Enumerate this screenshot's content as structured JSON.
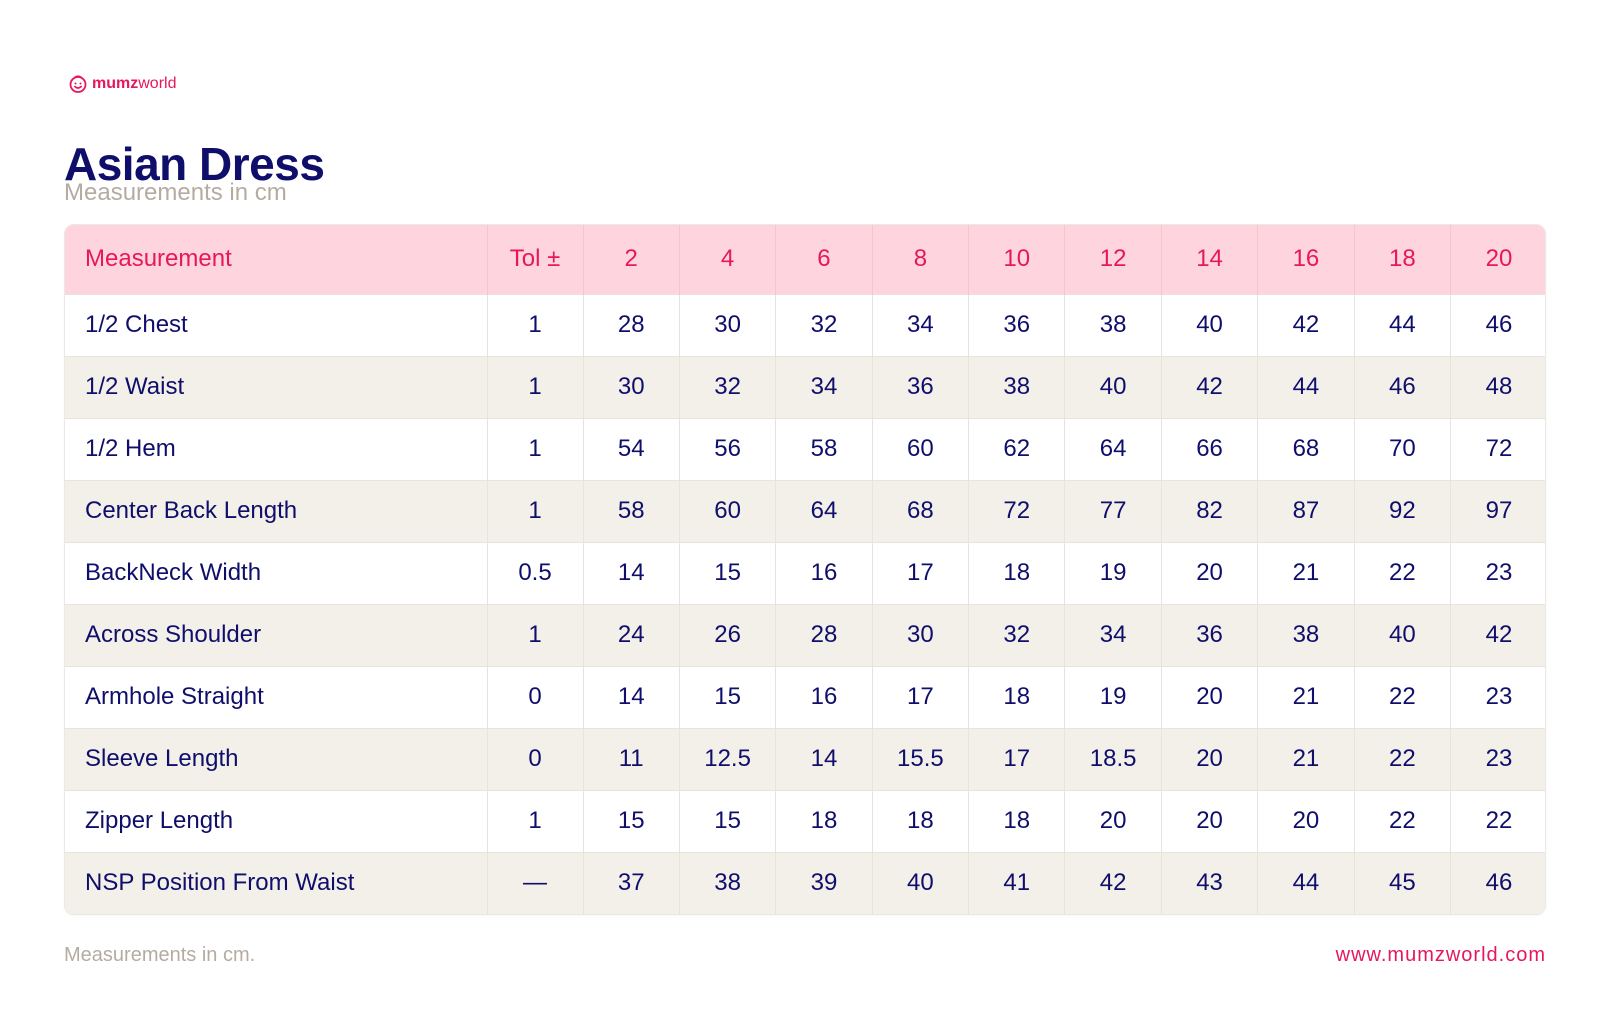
{
  "brand": {
    "icon": "smiley-face-icon",
    "name_bold": "mumz",
    "name_light": "world",
    "color": "#e6175c"
  },
  "title": "Asian Dress",
  "subtitle": "Measurements in cm",
  "table": {
    "headers": [
      "Measurement",
      "Tol ±",
      "2",
      "4",
      "6",
      "8",
      "10",
      "12",
      "14",
      "16",
      "18",
      "20"
    ],
    "rows": [
      [
        "1/2 Chest",
        "1",
        "28",
        "30",
        "32",
        "34",
        "36",
        "38",
        "40",
        "42",
        "44",
        "46"
      ],
      [
        "1/2 Waist",
        "1",
        "30",
        "32",
        "34",
        "36",
        "38",
        "40",
        "42",
        "44",
        "46",
        "48"
      ],
      [
        "1/2 Hem",
        "1",
        "54",
        "56",
        "58",
        "60",
        "62",
        "64",
        "66",
        "68",
        "70",
        "72"
      ],
      [
        "Center Back Length",
        "1",
        "58",
        "60",
        "64",
        "68",
        "72",
        "77",
        "82",
        "87",
        "92",
        "97"
      ],
      [
        "BackNeck Width",
        "0.5",
        "14",
        "15",
        "16",
        "17",
        "18",
        "19",
        "20",
        "21",
        "22",
        "23"
      ],
      [
        "Across Shoulder",
        "1",
        "24",
        "26",
        "28",
        "30",
        "32",
        "34",
        "36",
        "38",
        "40",
        "42"
      ],
      [
        "Armhole Straight",
        "0",
        "14",
        "15",
        "16",
        "17",
        "18",
        "19",
        "20",
        "21",
        "22",
        "23"
      ],
      [
        "Sleeve Length",
        "0",
        "11",
        "12.5",
        "14",
        "15.5",
        "17",
        "18.5",
        "20",
        "21",
        "22",
        "23"
      ],
      [
        "Zipper Length",
        "1",
        "15",
        "15",
        "18",
        "18",
        "18",
        "20",
        "20",
        "20",
        "22",
        "22"
      ],
      [
        "NSP Position From Waist",
        "—",
        "37",
        "38",
        "39",
        "40",
        "41",
        "42",
        "43",
        "44",
        "45",
        "46"
      ]
    ]
  },
  "footer": {
    "note": "Measurements in cm.",
    "url": "www.mumzworld.com"
  },
  "colors": {
    "accent": "#e6175c",
    "heading": "#0f0f6b",
    "muted": "#b5aca1",
    "header_bg": "#fed5df",
    "stripe_bg": "#f3efe9"
  }
}
